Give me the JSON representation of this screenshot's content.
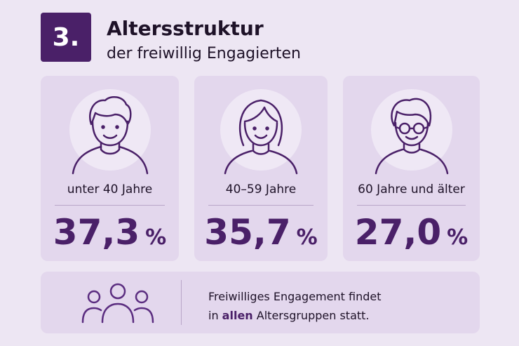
{
  "header": {
    "number": "3.",
    "title": "Altersstruktur",
    "subtitle": "der freiwillig Engagierten"
  },
  "cards": [
    {
      "label": "unter 40 Jahre",
      "value": "37,3",
      "unit": "%"
    },
    {
      "label": "40–59 Jahre",
      "value": "35,7",
      "unit": "%"
    },
    {
      "label": "60 Jahre und älter",
      "value": "27,0",
      "unit": "%"
    }
  ],
  "footer": {
    "line1": "Freiwilliges Engagement findet",
    "line2_before": "in ",
    "line2_highlight": "allen",
    "line2_after": " Altersgruppen statt."
  }
}
